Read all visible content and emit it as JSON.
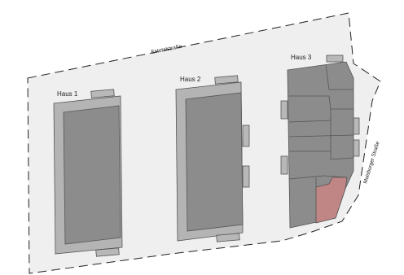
{
  "plan": {
    "street_top": "Estetalstraße",
    "street_right": "Moisburger Straße",
    "houses": [
      {
        "label": "Haus 1"
      },
      {
        "label": "Haus 2"
      },
      {
        "label": "Haus 3"
      }
    ],
    "highlight_color": "#c08585",
    "building_color": "#8c8c8c",
    "frame_color": "#b4b4b4",
    "lot_color": "#efefef"
  }
}
